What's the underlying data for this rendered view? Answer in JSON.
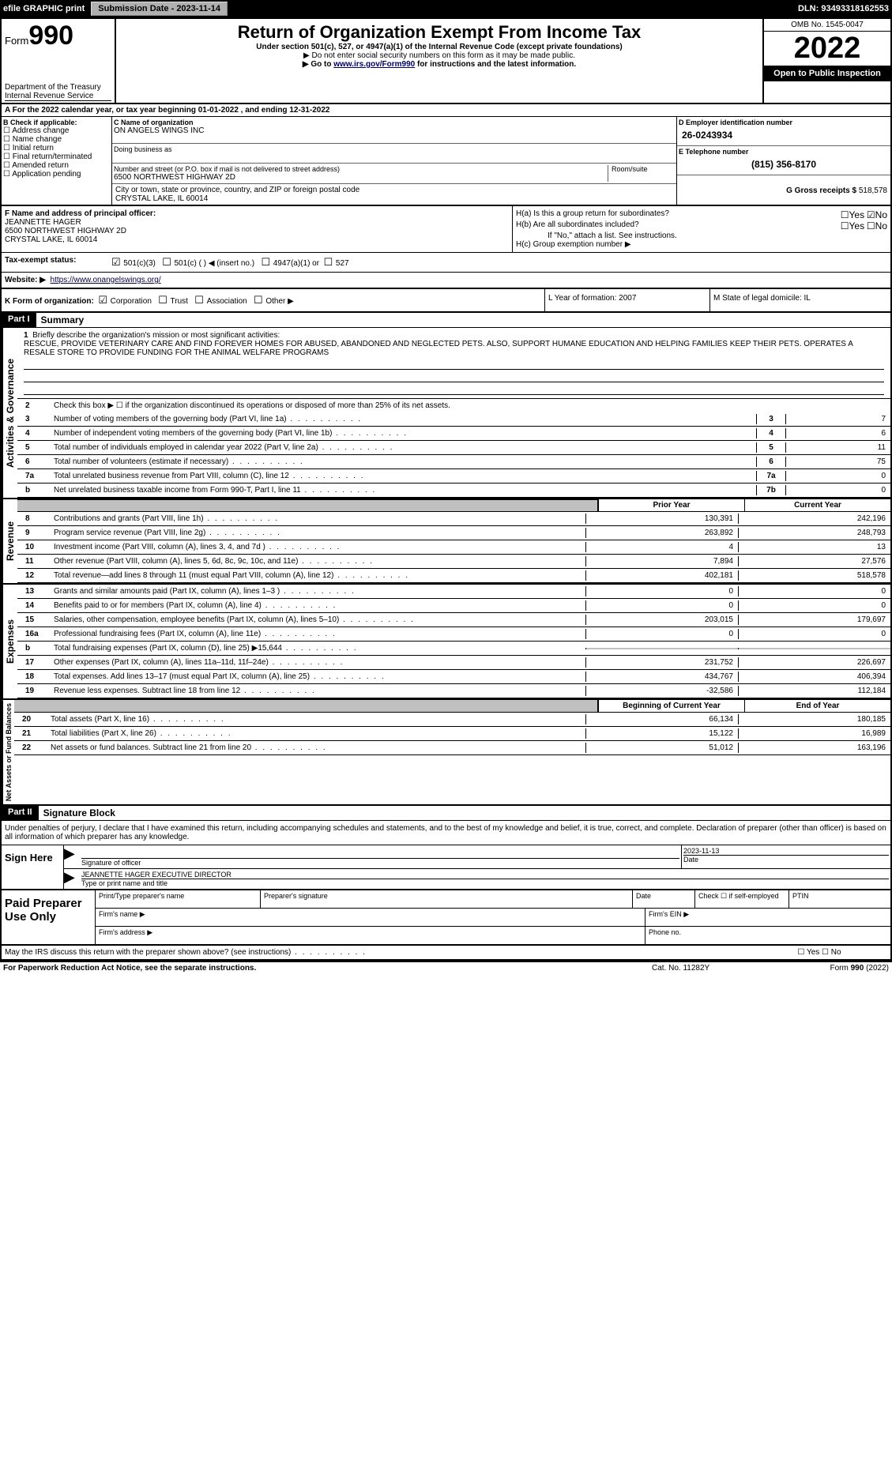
{
  "topbar": {
    "efile": "efile GRAPHIC print",
    "submission_label": "Submission Date - 2023-11-14",
    "dln": "DLN: 93493318162553"
  },
  "header": {
    "form_small": "Form",
    "form_big": "990",
    "dept": "Department of the Treasury",
    "irs": "Internal Revenue Service",
    "title": "Return of Organization Exempt From Income Tax",
    "sub1": "Under section 501(c), 527, or 4947(a)(1) of the Internal Revenue Code (except private foundations)",
    "sub2": "▶ Do not enter social security numbers on this form as it may be made public.",
    "sub3_pre": "▶ Go to ",
    "sub3_link": "www.irs.gov/Form990",
    "sub3_post": " for instructions and the latest information.",
    "omb": "OMB No. 1545-0047",
    "year": "2022",
    "openpub": "Open to Public Inspection"
  },
  "calrow": "A For the 2022 calendar year, or tax year beginning 01-01-2022    , and ending 12-31-2022",
  "boxB": {
    "label": "B Check if applicable:",
    "items": [
      "Address change",
      "Name change",
      "Initial return",
      "Final return/terminated",
      "Amended return",
      "Application pending"
    ]
  },
  "boxC": {
    "label_name": "C Name of organization",
    "name": "ON ANGELS WINGS INC",
    "dba_label": "Doing business as",
    "addr_label": "Number and street (or P.O. box if mail is not delivered to street address)",
    "room_label": "Room/suite",
    "addr": "6500 NORTHWEST HIGHWAY 2D",
    "city_label": "City or town, state or province, country, and ZIP or foreign postal code",
    "city": "CRYSTAL LAKE, IL  60014"
  },
  "boxD": {
    "label": "D Employer identification number",
    "ein": "26-0243934",
    "phone_label": "E Telephone number",
    "phone": "(815) 356-8170",
    "gross_label": "G Gross receipts $",
    "gross": "518,578"
  },
  "boxF": {
    "label": "F  Name and address of principal officer:",
    "name": "JEANNETTE HAGER",
    "addr1": "6500 NORTHWEST HIGHWAY 2D",
    "addr2": "CRYSTAL LAKE, IL  60014"
  },
  "boxH": {
    "a_label": "H(a)  Is this a group return for subordinates?",
    "a_yes": "Yes",
    "a_no": "No",
    "b_label": "H(b)  Are all subordinates included?",
    "b_yes": "Yes",
    "b_no": "No",
    "b_note": "If \"No,\" attach a list. See instructions.",
    "c_label": "H(c)  Group exemption number ▶"
  },
  "taxrow": {
    "label": "Tax-exempt status:",
    "o1": "501(c)(3)",
    "o2": "501(c) (   ) ◀ (insert no.)",
    "o3": "4947(a)(1) or",
    "o4": "527"
  },
  "website": {
    "label": "Website: ▶",
    "url": "https://www.onangelswings.org/"
  },
  "krow": {
    "k": "K Form of organization:",
    "corp": "Corporation",
    "trust": "Trust",
    "assoc": "Association",
    "other": "Other ▶",
    "l": "L Year of formation: 2007",
    "m": "M State of legal domicile: IL"
  },
  "part1": {
    "label": "Part I",
    "title": "Summary"
  },
  "brief": {
    "num": "1",
    "label": "Briefly describe the organization's mission or most significant activities:",
    "text": "RESCUE, PROVIDE VETERINARY CARE AND FIND FOREVER HOMES FOR ABUSED, ABANDONED AND NEGLECTED PETS. ALSO, SUPPORT HUMANE EDUCATION AND HELPING FAMILIES KEEP THEIR PETS. OPERATES A RESALE STORE TO PROVIDE FUNDING FOR THE ANIMAL WELFARE PROGRAMS"
  },
  "gov_lines": [
    {
      "n": "2",
      "t": "Check this box ▶ ☐  if the organization discontinued its operations or disposed of more than 25% of its net assets.",
      "box": "",
      "v": ""
    },
    {
      "n": "3",
      "t": "Number of voting members of the governing body (Part VI, line 1a)",
      "box": "3",
      "v": "7"
    },
    {
      "n": "4",
      "t": "Number of independent voting members of the governing body (Part VI, line 1b)",
      "box": "4",
      "v": "6"
    },
    {
      "n": "5",
      "t": "Total number of individuals employed in calendar year 2022 (Part V, line 2a)",
      "box": "5",
      "v": "11"
    },
    {
      "n": "6",
      "t": "Total number of volunteers (estimate if necessary)",
      "box": "6",
      "v": "75"
    },
    {
      "n": "7a",
      "t": "Total unrelated business revenue from Part VIII, column (C), line 12",
      "box": "7a",
      "v": "0"
    },
    {
      "n": "b",
      "t": "Net unrelated business taxable income from Form 990-T, Part I, line 11",
      "box": "7b",
      "v": "0"
    }
  ],
  "twocol_hdr": {
    "py": "Prior Year",
    "cy": "Current Year"
  },
  "rev_lines": [
    {
      "n": "8",
      "t": "Contributions and grants (Part VIII, line 1h)",
      "v1": "130,391",
      "v2": "242,196"
    },
    {
      "n": "9",
      "t": "Program service revenue (Part VIII, line 2g)",
      "v1": "263,892",
      "v2": "248,793"
    },
    {
      "n": "10",
      "t": "Investment income (Part VIII, column (A), lines 3, 4, and 7d )",
      "v1": "4",
      "v2": "13"
    },
    {
      "n": "11",
      "t": "Other revenue (Part VIII, column (A), lines 5, 6d, 8c, 9c, 10c, and 11e)",
      "v1": "7,894",
      "v2": "27,576"
    },
    {
      "n": "12",
      "t": "Total revenue—add lines 8 through 11 (must equal Part VIII, column (A), line 12)",
      "v1": "402,181",
      "v2": "518,578"
    }
  ],
  "exp_lines": [
    {
      "n": "13",
      "t": "Grants and similar amounts paid (Part IX, column (A), lines 1–3 )",
      "v1": "0",
      "v2": "0"
    },
    {
      "n": "14",
      "t": "Benefits paid to or for members (Part IX, column (A), line 4)",
      "v1": "0",
      "v2": "0"
    },
    {
      "n": "15",
      "t": "Salaries, other compensation, employee benefits (Part IX, column (A), lines 5–10)",
      "v1": "203,015",
      "v2": "179,697"
    },
    {
      "n": "16a",
      "t": "Professional fundraising fees (Part IX, column (A), line 11e)",
      "v1": "0",
      "v2": "0"
    },
    {
      "n": "b",
      "t": "Total fundraising expenses (Part IX, column (D), line 25) ▶15,644",
      "v1": "",
      "v2": "",
      "shade": true
    },
    {
      "n": "17",
      "t": "Other expenses (Part IX, column (A), lines 11a–11d, 11f–24e)",
      "v1": "231,752",
      "v2": "226,697"
    },
    {
      "n": "18",
      "t": "Total expenses. Add lines 13–17 (must equal Part IX, column (A), line 25)",
      "v1": "434,767",
      "v2": "406,394"
    },
    {
      "n": "19",
      "t": "Revenue less expenses. Subtract line 18 from line 12",
      "v1": "-32,586",
      "v2": "112,184"
    }
  ],
  "net_hdr": {
    "py": "Beginning of Current Year",
    "cy": "End of Year"
  },
  "net_lines": [
    {
      "n": "20",
      "t": "Total assets (Part X, line 16)",
      "v1": "66,134",
      "v2": "180,185"
    },
    {
      "n": "21",
      "t": "Total liabilities (Part X, line 26)",
      "v1": "15,122",
      "v2": "16,989"
    },
    {
      "n": "22",
      "t": "Net assets or fund balances. Subtract line 21 from line 20",
      "v1": "51,012",
      "v2": "163,196"
    }
  ],
  "part2": {
    "label": "Part II",
    "title": "Signature Block"
  },
  "sig_intro": "Under penalties of perjury, I declare that I have examined this return, including accompanying schedules and statements, and to the best of my knowledge and belief, it is true, correct, and complete. Declaration of preparer (other than officer) is based on all information of which preparer has any knowledge.",
  "sig": {
    "here": "Sign Here",
    "sigoff": "Signature of officer",
    "date": "2023-11-13",
    "datelbl": "Date",
    "name": "JEANNETTE HAGER  EXECUTIVE DIRECTOR",
    "typelbl": "Type or print name and title"
  },
  "prep": {
    "label": "Paid Preparer Use Only",
    "h1": "Print/Type preparer's name",
    "h2": "Preparer's signature",
    "h3": "Date",
    "h4": "Check ☐ if self-employed",
    "h5": "PTIN",
    "f1": "Firm's name  ▶",
    "f2": "Firm's EIN ▶",
    "f3": "Firm's address ▶",
    "f4": "Phone no."
  },
  "discuss": "May the IRS discuss this return with the preparer shown above? (see instructions)",
  "discussYN": "☐ Yes  ☐ No",
  "footer": {
    "l": "For Paperwork Reduction Act Notice, see the separate instructions.",
    "m": "Cat. No. 11282Y",
    "r": "Form 990 (2022)"
  },
  "sidelabels": {
    "gov": "Activities & Governance",
    "rev": "Revenue",
    "exp": "Expenses",
    "net": "Net Assets or Fund Balances"
  }
}
